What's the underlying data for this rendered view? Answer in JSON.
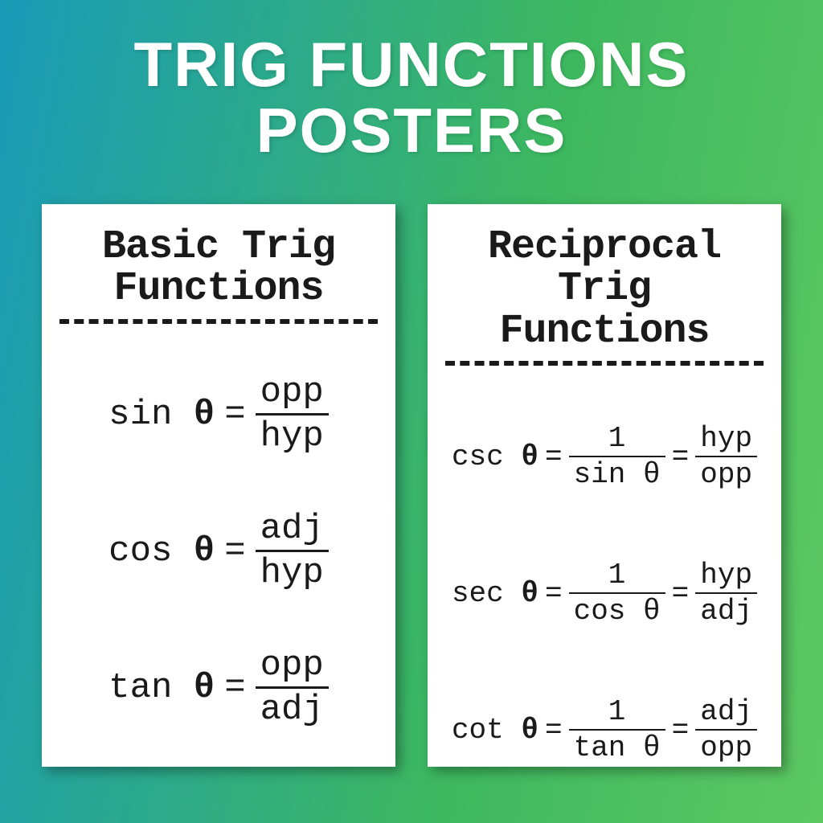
{
  "title": {
    "line1": "TRIG FUNCTIONS",
    "line2": "POSTERS"
  },
  "colors": {
    "bg_left": "#1a9bb8",
    "bg_right": "#5dc862",
    "title_color": "#ffffff",
    "poster_bg": "#ffffff",
    "text_color": "#1a1a1a"
  },
  "posters": {
    "basic": {
      "title_line1": "Basic Trig",
      "title_line2": "Functions",
      "equations": [
        {
          "func": "sin",
          "theta": "θ",
          "eq": "=",
          "num": "opp",
          "den": "hyp"
        },
        {
          "func": "cos",
          "theta": "θ",
          "eq": "=",
          "num": "adj",
          "den": "hyp"
        },
        {
          "func": "tan",
          "theta": "θ",
          "eq": "=",
          "num": "opp",
          "den": "adj"
        }
      ]
    },
    "reciprocal": {
      "title_line1": "Reciprocal",
      "title_line2": "Trig Functions",
      "equations": [
        {
          "func": "csc",
          "theta": "θ",
          "eq1": "=",
          "num1": "1",
          "den1": "sin θ",
          "eq2": "=",
          "num2": "hyp",
          "den2": "opp"
        },
        {
          "func": "sec",
          "theta": "θ",
          "eq1": "=",
          "num1": "1",
          "den1": "cos θ",
          "eq2": "=",
          "num2": "hyp",
          "den2": "adj"
        },
        {
          "func": "cot",
          "theta": "θ",
          "eq1": "=",
          "num1": "1",
          "den1": "tan θ",
          "eq2": "=",
          "num2": "adj",
          "den2": "opp"
        }
      ]
    }
  }
}
